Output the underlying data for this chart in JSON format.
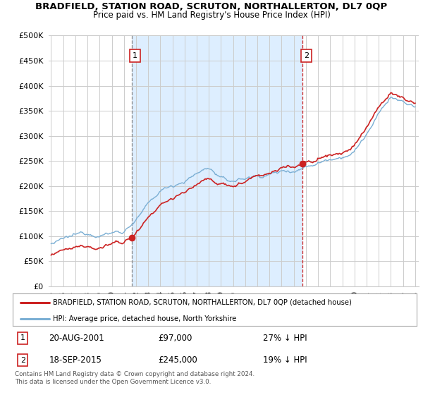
{
  "title": "BRADFIELD, STATION ROAD, SCRUTON, NORTHALLERTON, DL7 0QP",
  "subtitle": "Price paid vs. HM Land Registry's House Price Index (HPI)",
  "ylabel_ticks": [
    "£0",
    "£50K",
    "£100K",
    "£150K",
    "£200K",
    "£250K",
    "£300K",
    "£350K",
    "£400K",
    "£450K",
    "£500K"
  ],
  "ytick_values": [
    0,
    50000,
    100000,
    150000,
    200000,
    250000,
    300000,
    350000,
    400000,
    450000,
    500000
  ],
  "ylim": [
    0,
    500000
  ],
  "xlim_start": 1994.8,
  "xlim_end": 2025.3,
  "hpi_color": "#7bafd4",
  "price_color": "#cc2222",
  "grid_color": "#cccccc",
  "shade_color": "#ddeeff",
  "background_color": "#ffffff",
  "sale1_x": 2001.63,
  "sale1_y": 97000,
  "sale2_x": 2015.72,
  "sale2_y": 245000,
  "legend_label_red": "BRADFIELD, STATION ROAD, SCRUTON, NORTHALLERTON, DL7 0QP (detached house)",
  "legend_label_blue": "HPI: Average price, detached house, North Yorkshire",
  "table_row1": [
    "1",
    "20-AUG-2001",
    "£97,000",
    "27% ↓ HPI"
  ],
  "table_row2": [
    "2",
    "18-SEP-2015",
    "£245,000",
    "19% ↓ HPI"
  ],
  "footnote": "Contains HM Land Registry data © Crown copyright and database right 2024.\nThis data is licensed under the Open Government Licence v3.0."
}
